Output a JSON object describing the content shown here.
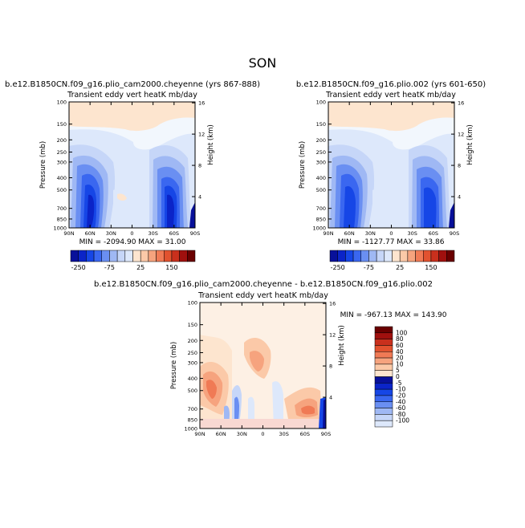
{
  "page": {
    "season": "SON"
  },
  "colors": {
    "cool": [
      "#08109a",
      "#0b24c8",
      "#1646e6",
      "#3a67f0",
      "#6a8ff2",
      "#9fb8f4",
      "#c6d6f8",
      "#dde8fb"
    ],
    "warm": [
      "#fde5cf",
      "#fbc9a8",
      "#f6a37e",
      "#f07a55",
      "#e2522f",
      "#c9301d",
      "#a0100e",
      "#6a0000"
    ],
    "neutral": "#ffffff"
  },
  "chart_data": [
    {
      "id": "panel-1",
      "type": "contour",
      "case_title": "b.e12.B1850CN.f09_g16.plio_cam2000.cheyenne (yrs 867-888)",
      "title": "Transient eddy vert heatK mb/day",
      "ylabel": "Pressure (mb)",
      "y2label": "Height (km)",
      "x_ticks": [
        "90N",
        "60N",
        "30N",
        "0",
        "30S",
        "60S",
        "90S"
      ],
      "y_ticks": [
        "100",
        "150",
        "200",
        "250",
        "300",
        "400",
        "500",
        "700",
        "850",
        "1000"
      ],
      "y2_ticks": [
        "16",
        "12",
        "8",
        "4"
      ],
      "stats": "MIN = -2094.90   MAX =  31.00",
      "colorbar_labels": [
        "-250",
        "-75",
        "25",
        "150"
      ]
    },
    {
      "id": "panel-2",
      "type": "contour",
      "case_title": "b.e12.B1850CN.f09_g16.plio.002 (yrs 601-650)",
      "title": "Transient eddy vert heatK mb/day",
      "ylabel": "Pressure (mb)",
      "y2label": "Height (km)",
      "x_ticks": [
        "90N",
        "60N",
        "30N",
        "0",
        "30S",
        "60S",
        "90S"
      ],
      "y_ticks": [
        "100",
        "150",
        "200",
        "250",
        "300",
        "400",
        "500",
        "700",
        "850",
        "1000"
      ],
      "y2_ticks": [
        "16",
        "12",
        "8",
        "4"
      ],
      "stats": "MIN = -1127.77   MAX =  33.86",
      "colorbar_labels": [
        "-250",
        "-75",
        "25",
        "150"
      ]
    },
    {
      "id": "panel-diff",
      "type": "contour",
      "case_title": "b.e12.B1850CN.f09_g16.plio_cam2000.cheyenne - b.e12.B1850CN.f09_g16.plio.002",
      "title": "Transient eddy vert heatK mb/day",
      "ylabel": "Pressure (mb)",
      "y2label": "Height (km)",
      "x_ticks": [
        "90N",
        "60N",
        "30N",
        "0",
        "30S",
        "60S",
        "90S"
      ],
      "y_ticks": [
        "100",
        "150",
        "200",
        "250",
        "300",
        "400",
        "500",
        "700",
        "850",
        "1000"
      ],
      "y2_ticks": [
        "16",
        "12",
        "8",
        "4"
      ],
      "stats": "MIN = -967.13   MAX = 143.90",
      "colorbar_labels": [
        "100",
        "80",
        "60",
        "40",
        "20",
        "10",
        "5",
        "0",
        "-5",
        "-10",
        "-20",
        "-40",
        "-60",
        "-80",
        "-100"
      ]
    }
  ]
}
